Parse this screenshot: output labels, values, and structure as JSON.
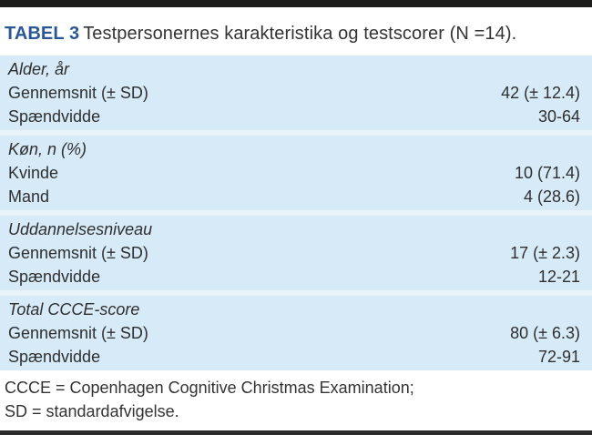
{
  "title": {
    "label": "TABEL 3",
    "text": "Testpersonernes karakteristika og testscorer (N =14)."
  },
  "table": {
    "sections": [
      {
        "header": "Alder, år",
        "rows": [
          {
            "label": "Gennemsnit (± SD)",
            "value": "42 (± 12.4)"
          },
          {
            "label": "Spændvidde",
            "value": "30-64"
          }
        ]
      },
      {
        "header": "Køn, n (%)",
        "rows": [
          {
            "label": "Kvinde",
            "value": "10 (71.4)"
          },
          {
            "label": "Mand",
            "value": "4 (28.6)"
          }
        ]
      },
      {
        "header": "Uddannelsesniveau",
        "rows": [
          {
            "label": "Gennemsnit (± SD)",
            "value": "17 (± 2.3)"
          },
          {
            "label": "Spændvidde",
            "value": "12-21"
          }
        ]
      },
      {
        "header": "Total CCCE-score",
        "rows": [
          {
            "label": "Gennemsnit (± SD)",
            "value": "80 (± 6.3)"
          },
          {
            "label": "Spændvidde",
            "value": "72-91"
          }
        ]
      }
    ]
  },
  "footnote": {
    "line1": "CCCE = Copenhagen Cognitive Christmas Examination;",
    "line2": "SD = standardafvigelse."
  },
  "colors": {
    "section_bg": "#d7eaf7",
    "separator": "#e9f3fa",
    "title_accent": "#2a5796",
    "body_text": "#333333",
    "top_rule": "#1d1d1b",
    "bottom_rule": "#2b2b2b"
  }
}
